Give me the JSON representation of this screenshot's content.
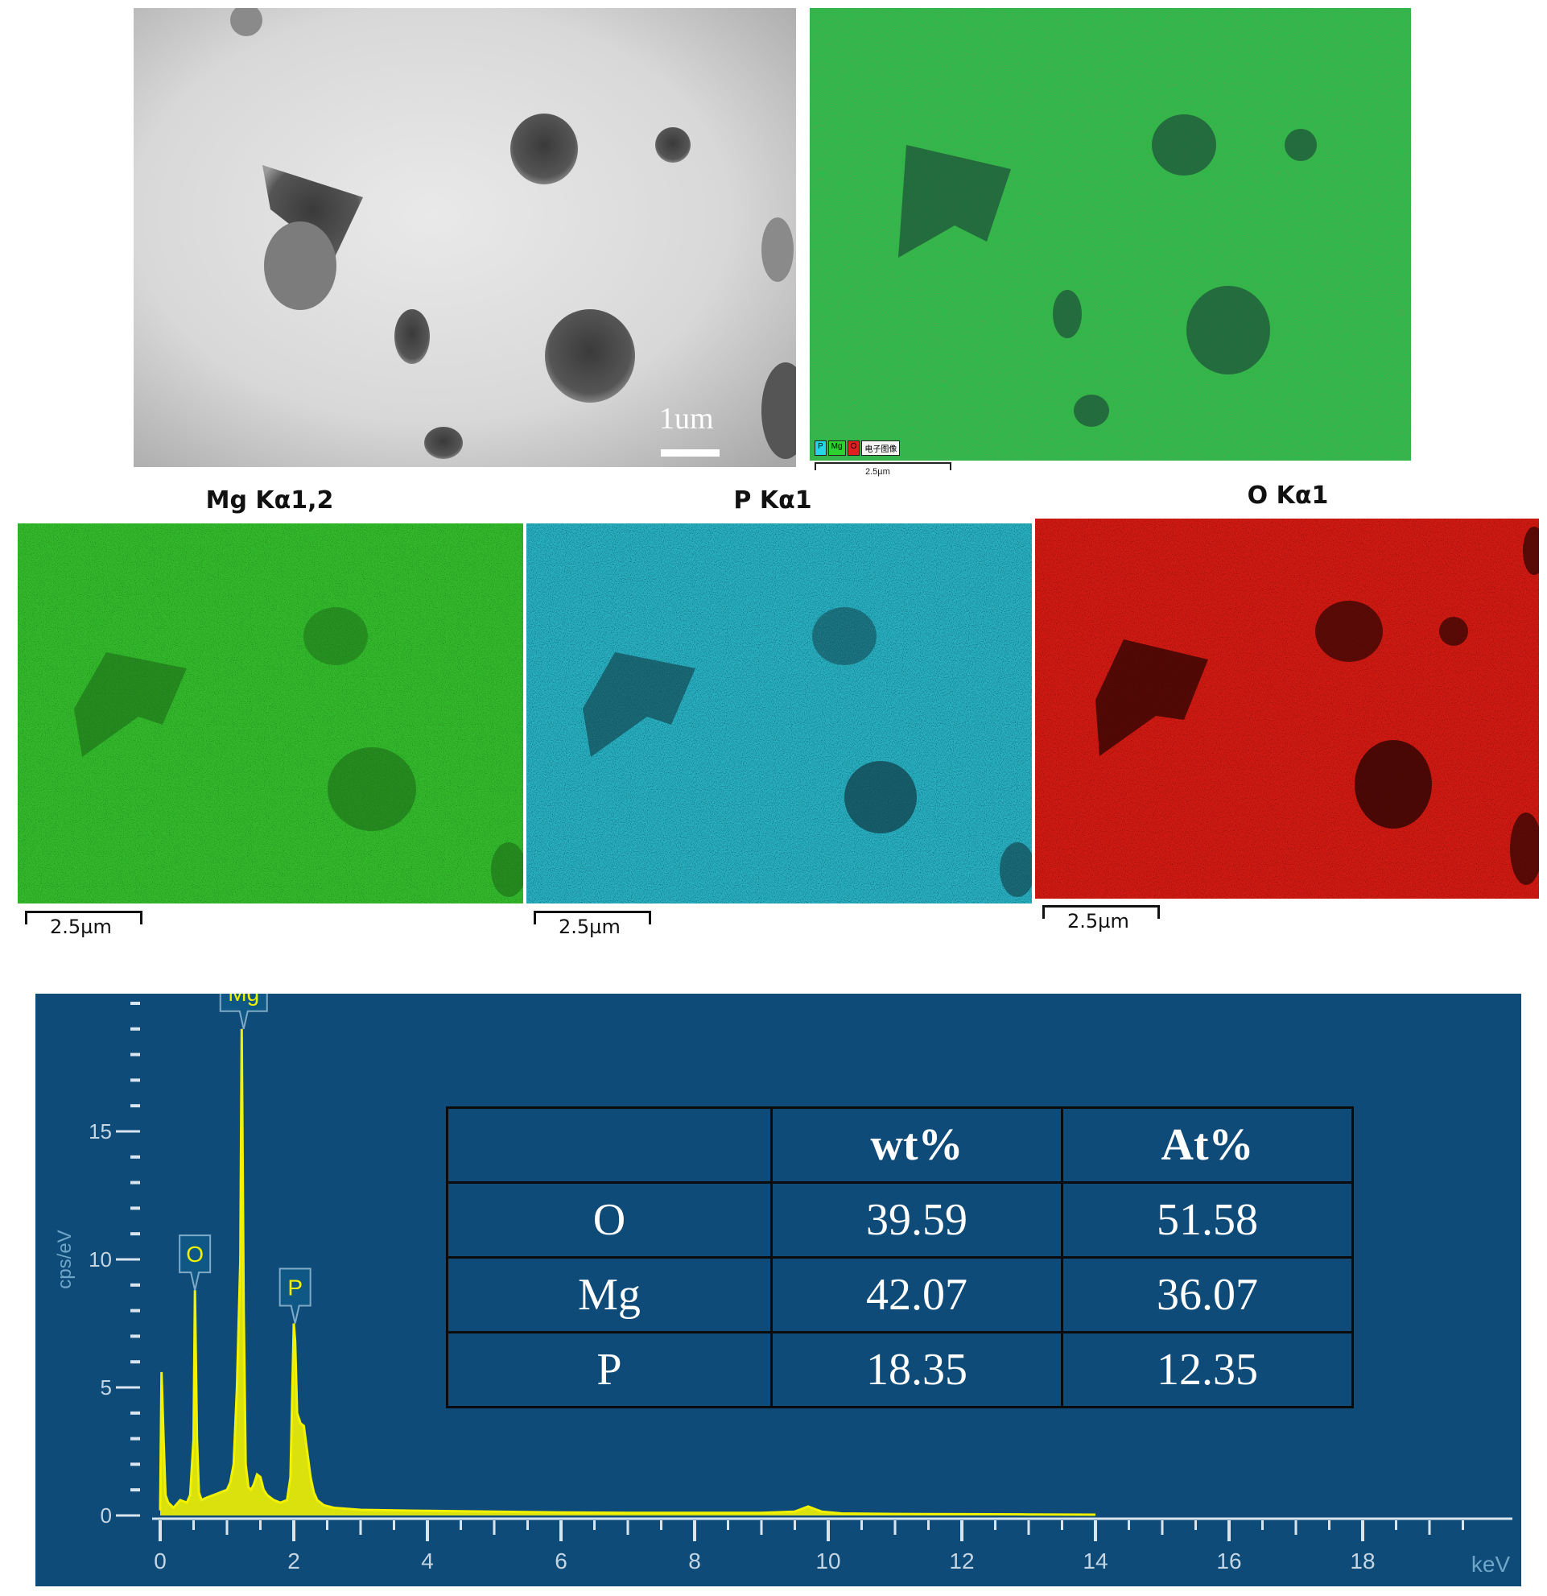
{
  "sem_image": {
    "scale_label": "1um"
  },
  "overlay_map": {
    "legend": [
      {
        "label": "P",
        "color": "#27d6e6"
      },
      {
        "label": "Mg",
        "color": "#2fd12f"
      },
      {
        "label": "O",
        "color": "#e02020"
      },
      {
        "label": "电子图像",
        "color": "#f4f4f4"
      }
    ],
    "scale_label": "2.5µm"
  },
  "element_maps": [
    {
      "title": "Mg Kα1,2",
      "color": "#2fb82c",
      "scale_label": "2.5µm"
    },
    {
      "title": "P Kα1",
      "color": "#2ab5c4",
      "scale_label": "2.5µm"
    },
    {
      "title": "O Kα1",
      "color": "#d81c14",
      "scale_label": "2.5µm"
    }
  ],
  "chart_data": {
    "type": "line",
    "title": "",
    "xlabel": "keV",
    "ylabel": "cps/eV",
    "xlim": [
      0,
      20
    ],
    "ylim": [
      0,
      20
    ],
    "x_ticks": [
      0,
      2,
      4,
      6,
      8,
      10,
      12,
      14,
      16,
      18
    ],
    "y_ticks": [
      0,
      5,
      10,
      15
    ],
    "series_color": "#f2f200",
    "spectrum": {
      "x": [
        0.0,
        0.02,
        0.05,
        0.08,
        0.12,
        0.2,
        0.3,
        0.4,
        0.45,
        0.5,
        0.52,
        0.55,
        0.58,
        0.62,
        0.7,
        0.8,
        0.9,
        1.0,
        1.05,
        1.1,
        1.15,
        1.2,
        1.22,
        1.25,
        1.28,
        1.32,
        1.36,
        1.4,
        1.45,
        1.5,
        1.55,
        1.6,
        1.7,
        1.8,
        1.9,
        1.95,
        2.0,
        2.02,
        2.05,
        2.1,
        2.15,
        2.2,
        2.25,
        2.3,
        2.35,
        2.45,
        2.6,
        3.0,
        4.0,
        5.0,
        6.0,
        7.0,
        8.0,
        9.0,
        9.5,
        9.7,
        9.9,
        10.2,
        11.0,
        12.0,
        13.0,
        14.0
      ],
      "y": [
        0.2,
        5.6,
        3.0,
        0.8,
        0.5,
        0.3,
        0.6,
        0.5,
        0.8,
        3.0,
        8.8,
        3.0,
        0.9,
        0.6,
        0.7,
        0.8,
        0.9,
        1.0,
        1.3,
        2.0,
        5.0,
        10.0,
        19.0,
        8.0,
        2.0,
        1.1,
        1.0,
        1.2,
        1.6,
        1.5,
        1.0,
        0.8,
        0.6,
        0.5,
        0.6,
        1.5,
        7.5,
        6.8,
        4.0,
        3.6,
        3.5,
        2.5,
        1.5,
        0.9,
        0.6,
        0.4,
        0.3,
        0.22,
        0.18,
        0.15,
        0.12,
        0.1,
        0.1,
        0.1,
        0.15,
        0.35,
        0.15,
        0.08,
        0.06,
        0.05,
        0.04,
        0.03
      ]
    },
    "peak_labels": [
      {
        "label": "O",
        "x": 0.52,
        "y": 8.8
      },
      {
        "label": "Mg",
        "x": 1.25,
        "y": 19.0
      },
      {
        "label": "P",
        "x": 2.02,
        "y": 7.5
      }
    ]
  },
  "composition_table": {
    "headers": [
      "",
      "wt%",
      "At%"
    ],
    "rows": [
      {
        "element": "O",
        "wt": "39.59",
        "at": "51.58"
      },
      {
        "element": "Mg",
        "wt": "42.07",
        "at": "36.07"
      },
      {
        "element": "P",
        "wt": "18.35",
        "at": "12.35"
      }
    ]
  }
}
